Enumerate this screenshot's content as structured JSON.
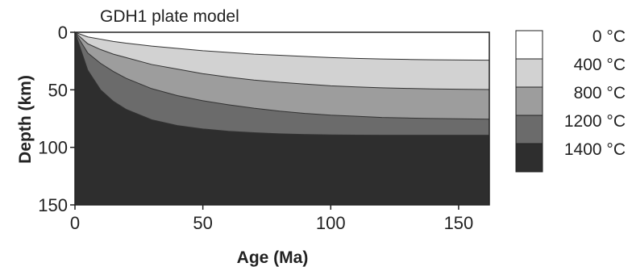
{
  "chart_data": {
    "type": "area",
    "title": "GDH1 plate model",
    "xlabel": "Age (Ma)",
    "ylabel": "Depth (km)",
    "xlim": [
      0,
      162
    ],
    "ylim": [
      150,
      0
    ],
    "y_inverted": true,
    "x_ticks": [
      0,
      50,
      100,
      150
    ],
    "y_ticks": [
      0,
      50,
      100,
      150
    ],
    "grid": false,
    "legend_position": "right",
    "x": [
      0,
      5,
      10,
      15,
      20,
      30,
      40,
      50,
      60,
      70,
      80,
      90,
      100,
      110,
      120,
      130,
      140,
      150,
      162
    ],
    "isotherms": [
      {
        "name": "400 °C",
        "depth": [
          0,
          4,
          6,
          8,
          9.5,
          12,
          14,
          16,
          17.5,
          19,
          20,
          21,
          22,
          22.7,
          23.2,
          23.6,
          23.9,
          24.1,
          24.3
        ]
      },
      {
        "name": "800 °C",
        "depth": [
          0,
          10,
          15,
          19,
          22,
          28,
          32,
          36,
          39,
          41.5,
          43.5,
          45,
          46.5,
          47.5,
          48.3,
          48.8,
          49.2,
          49.5,
          49.8
        ]
      },
      {
        "name": "1200 °C",
        "depth": [
          0,
          18,
          27,
          34,
          40,
          49,
          55,
          59.5,
          63,
          66,
          68.5,
          70.5,
          72,
          73,
          74,
          74.5,
          74.9,
          75.2,
          75.5
        ]
      },
      {
        "name": "1400 °C",
        "depth": [
          0,
          33,
          50,
          60,
          67,
          76,
          81,
          84,
          86,
          87.3,
          88.2,
          88.8,
          89.2,
          89.4,
          89.5,
          89.5,
          89.5,
          89.5,
          89.5
        ]
      }
    ],
    "bands": [
      {
        "label": "0 °C",
        "color": "#ffffff"
      },
      {
        "label": "400 °C",
        "color": "#d2d2d2"
      },
      {
        "label": "800 °C",
        "color": "#9d9d9d"
      },
      {
        "label": "1200 °C",
        "color": "#6b6b6b"
      },
      {
        "label": "1400 °C",
        "color": "#2e2e2e"
      }
    ]
  }
}
